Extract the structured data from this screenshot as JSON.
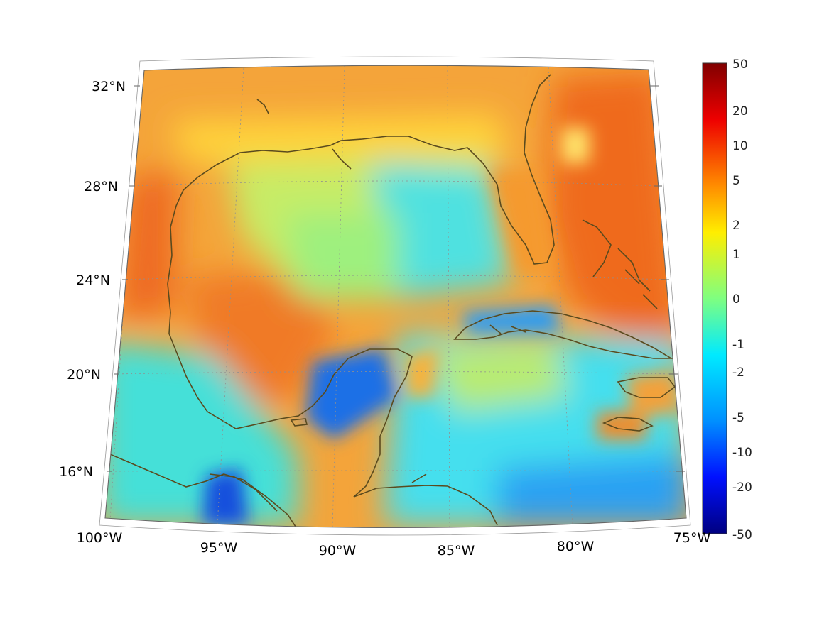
{
  "map": {
    "projection": "conic",
    "lon_range": [
      -100,
      -75
    ],
    "lat_range": [
      14.5,
      33
    ],
    "grid": true,
    "coastline_color": "#5a4a1e",
    "lat_labels": [
      "32°N",
      "28°N",
      "24°N",
      "20°N",
      "16°N"
    ],
    "lon_labels": [
      "100°W",
      "95°W",
      "90°W",
      "85°W",
      "80°W",
      "75°W"
    ]
  },
  "colorbar": {
    "orientation": "vertical",
    "position": "right",
    "colormap": "jet",
    "scale": "symmetric-log",
    "tick_labels": [
      "50",
      "20",
      "10",
      "5",
      "2",
      "1",
      "0",
      "-1",
      "-2",
      "-5",
      "-10",
      "-20",
      "-50"
    ],
    "colors": [
      "#00007f",
      "#0000ff",
      "#007fff",
      "#00ffff",
      "#7fff7f",
      "#ffff00",
      "#ff7f00",
      "#ff0000",
      "#7f0000"
    ]
  },
  "field": {
    "palette": {
      "land_warm": "#f5a23a",
      "land_hot": "#ef6a1e",
      "gulf_mid": "#bfe96a",
      "sea_cyan": "#3fe3ea",
      "sea_deep": "#1f7cf0",
      "deep_blue": "#1144d0"
    }
  }
}
